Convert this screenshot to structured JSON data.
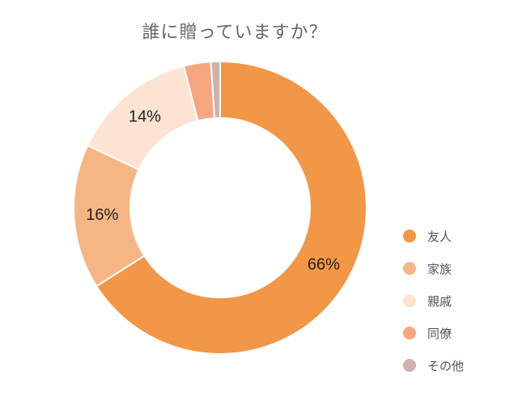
{
  "chart_data": {
    "type": "pie",
    "variant": "donut",
    "title": "誰に贈っていますか？",
    "categories": [
      "友人",
      "家族",
      "親戚",
      "同僚",
      "その他"
    ],
    "values": [
      66,
      16,
      14,
      3,
      1
    ],
    "value_labels": [
      "66%",
      "16%",
      "14%",
      "",
      ""
    ],
    "colors": [
      "#F29647",
      "#F5B684",
      "#FCE3D2",
      "#F8A680",
      "#CDB2A9"
    ],
    "legend_position": "right"
  }
}
